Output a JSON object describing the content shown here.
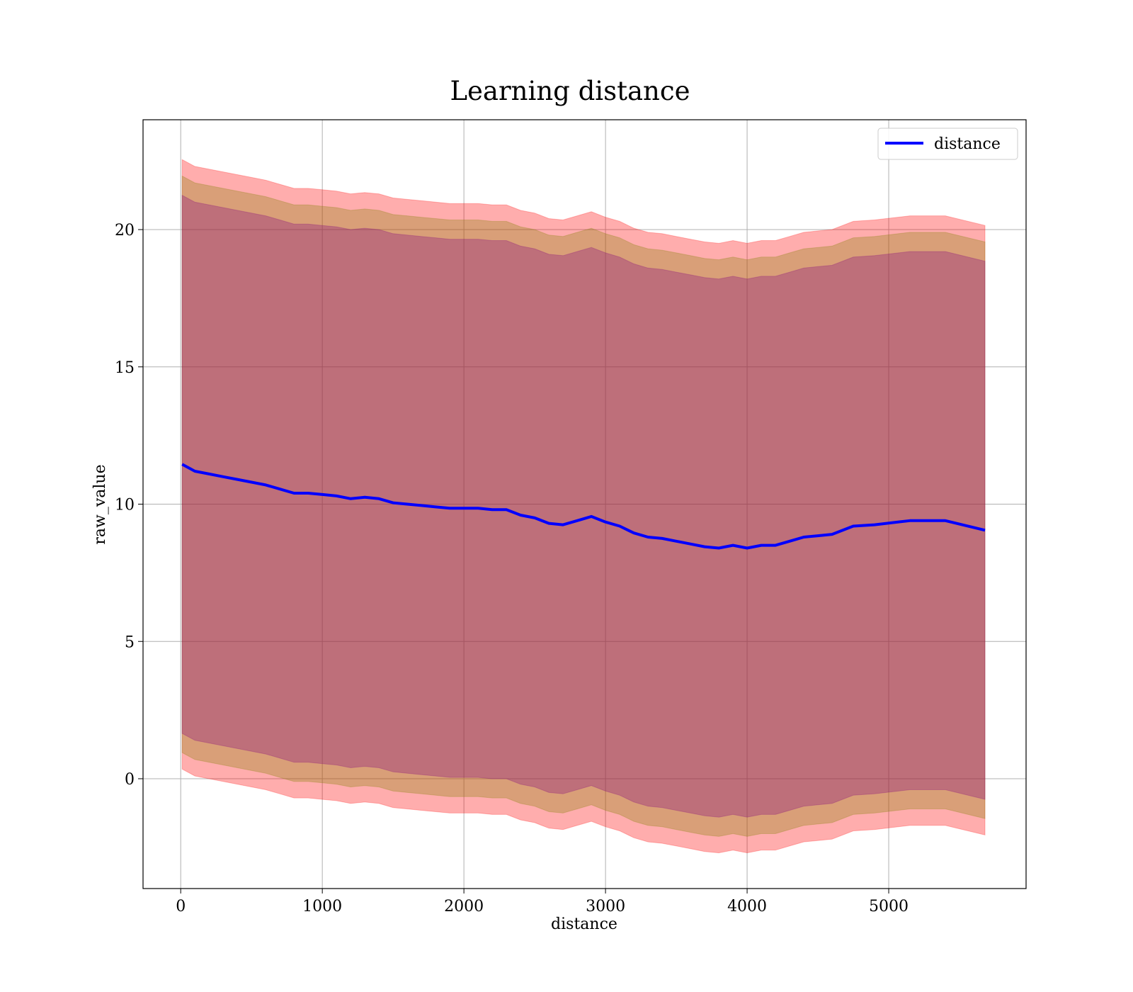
{
  "chart_data": {
    "type": "line",
    "title": "Learning distance",
    "xlabel": "distance",
    "ylabel": "raw_value",
    "xlim": [
      -266,
      5970
    ],
    "ylim": [
      -4.0,
      24.0
    ],
    "xticks": [
      0,
      1000,
      2000,
      3000,
      4000,
      5000
    ],
    "yticks": [
      0,
      5,
      10,
      15,
      20
    ],
    "grid": true,
    "legend": {
      "position": "top-right",
      "entries": [
        "distance"
      ]
    },
    "series": [
      {
        "name": "distance",
        "color": "#0000ff",
        "x": [
          10,
          100,
          200,
          300,
          400,
          500,
          600,
          700,
          800,
          900,
          1000,
          1100,
          1200,
          1300,
          1400,
          1500,
          1600,
          1700,
          1800,
          1900,
          2000,
          2100,
          2200,
          2300,
          2400,
          2500,
          2600,
          2700,
          2800,
          2900,
          3000,
          3100,
          3200,
          3300,
          3400,
          3500,
          3600,
          3700,
          3800,
          3900,
          4000,
          4100,
          4200,
          4300,
          4400,
          4500,
          4600,
          4750,
          4900,
          5150,
          5400,
          5680
        ],
        "y": [
          11.45,
          11.2,
          11.1,
          11.0,
          10.9,
          10.8,
          10.7,
          10.55,
          10.4,
          10.4,
          10.35,
          10.3,
          10.2,
          10.25,
          10.2,
          10.05,
          10.0,
          9.95,
          9.9,
          9.85,
          9.85,
          9.85,
          9.8,
          9.8,
          9.6,
          9.5,
          9.3,
          9.25,
          9.4,
          9.55,
          9.35,
          9.2,
          8.95,
          8.8,
          8.75,
          8.65,
          8.55,
          8.45,
          8.4,
          8.5,
          8.4,
          8.5,
          8.5,
          8.65,
          8.8,
          8.85,
          8.9,
          9.2,
          9.25,
          9.4,
          9.4,
          9.05
        ]
      }
    ],
    "bands": [
      {
        "color": "#ff0000",
        "opacity": 0.32,
        "offset_upper": 11.1,
        "offset_lower": 11.1
      },
      {
        "color": "#808000",
        "opacity": 0.3,
        "offset_upper": 10.5,
        "offset_lower": 10.5
      },
      {
        "color": "#800080",
        "opacity": 0.3,
        "offset_upper": 9.8,
        "offset_lower": 9.8
      }
    ]
  }
}
